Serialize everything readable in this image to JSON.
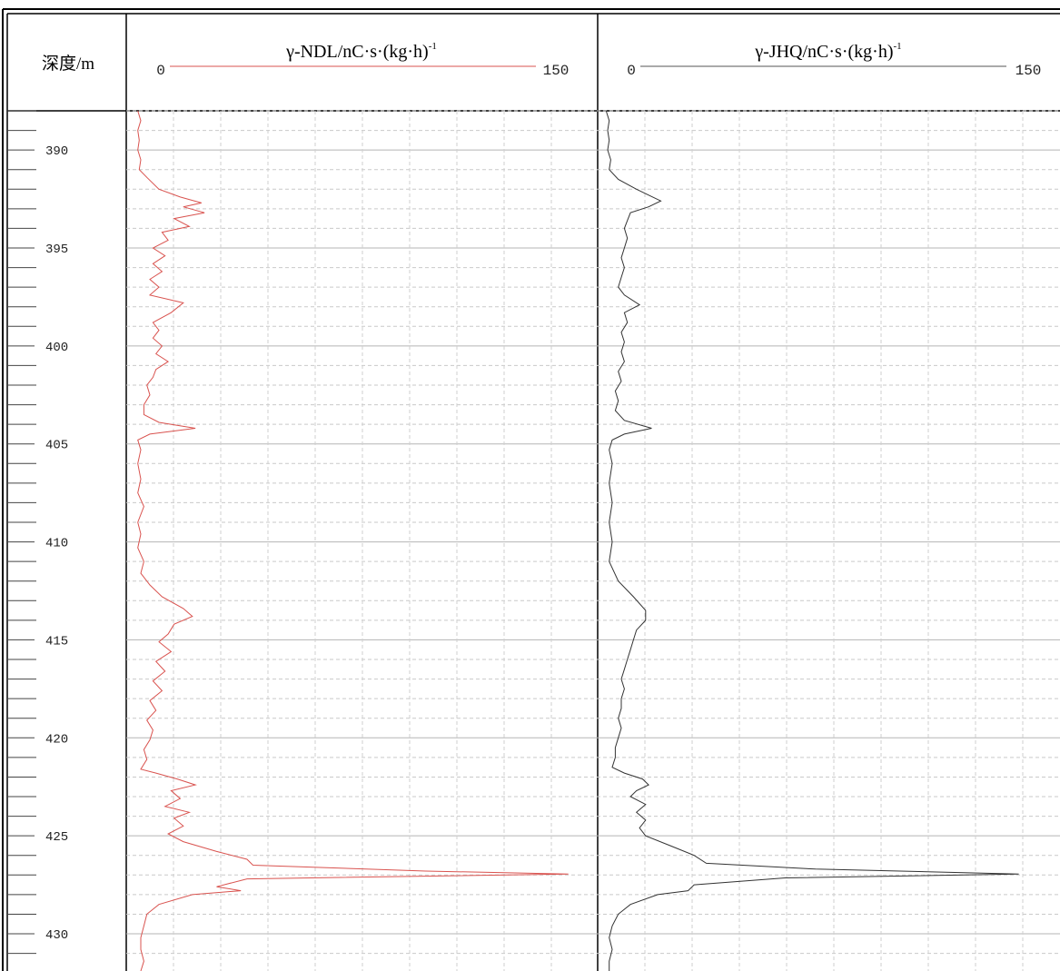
{
  "chart_data": {
    "type": "line",
    "depth_axis": {
      "label": "深度/m",
      "range": [
        388,
        431.9
      ],
      "major_ticks": [
        390,
        395,
        400,
        405,
        410,
        415,
        420,
        425,
        430
      ]
    },
    "tracks": [
      {
        "title": "γ-NDL/nC·s·(kg·h)",
        "title_sup": "-1",
        "scale_min_label": "0",
        "scale_max_label": "150",
        "xlim": [
          0,
          150
        ],
        "color": "#d9534f",
        "points": [
          [
            388.0,
            2
          ],
          [
            388.5,
            3
          ],
          [
            389.0,
            2
          ],
          [
            389.5,
            2.5
          ],
          [
            390.0,
            2
          ],
          [
            390.5,
            3
          ],
          [
            391.0,
            2.5
          ],
          [
            391.4,
            5
          ],
          [
            392.0,
            9
          ],
          [
            392.4,
            16
          ],
          [
            392.7,
            23
          ],
          [
            392.9,
            17
          ],
          [
            393.2,
            24
          ],
          [
            393.5,
            14
          ],
          [
            393.9,
            19
          ],
          [
            394.2,
            10
          ],
          [
            394.6,
            12
          ],
          [
            395.0,
            7
          ],
          [
            395.4,
            11
          ],
          [
            395.8,
            7
          ],
          [
            396.2,
            10
          ],
          [
            396.6,
            6
          ],
          [
            397.0,
            9
          ],
          [
            397.4,
            6
          ],
          [
            397.8,
            17
          ],
          [
            398.3,
            13
          ],
          [
            398.8,
            7
          ],
          [
            399.2,
            9
          ],
          [
            399.6,
            7
          ],
          [
            400.0,
            10
          ],
          [
            400.4,
            8
          ],
          [
            400.8,
            12
          ],
          [
            401.2,
            8
          ],
          [
            401.6,
            7
          ],
          [
            402.0,
            5
          ],
          [
            402.5,
            6
          ],
          [
            403.0,
            4
          ],
          [
            403.5,
            4
          ],
          [
            403.9,
            9
          ],
          [
            404.2,
            21
          ],
          [
            404.5,
            6
          ],
          [
            404.8,
            2
          ],
          [
            405.3,
            3
          ],
          [
            406.0,
            2
          ],
          [
            406.8,
            3
          ],
          [
            407.5,
            2
          ],
          [
            408.2,
            4
          ],
          [
            409.0,
            2
          ],
          [
            409.6,
            3
          ],
          [
            410.3,
            2
          ],
          [
            411.0,
            4
          ],
          [
            411.6,
            3
          ],
          [
            412.2,
            6
          ],
          [
            412.8,
            10
          ],
          [
            413.4,
            17
          ],
          [
            413.8,
            20
          ],
          [
            414.2,
            14
          ],
          [
            414.7,
            12
          ],
          [
            415.1,
            9
          ],
          [
            415.6,
            13
          ],
          [
            416.1,
            8
          ],
          [
            416.6,
            11
          ],
          [
            417.1,
            7
          ],
          [
            417.6,
            10
          ],
          [
            418.1,
            6
          ],
          [
            418.6,
            8
          ],
          [
            419.1,
            5
          ],
          [
            419.6,
            7
          ],
          [
            420.1,
            6
          ],
          [
            420.6,
            4
          ],
          [
            421.1,
            5
          ],
          [
            421.6,
            3
          ],
          [
            421.8,
            8
          ],
          [
            422.1,
            15
          ],
          [
            422.4,
            21
          ],
          [
            422.7,
            13
          ],
          [
            423.1,
            16
          ],
          [
            423.5,
            11
          ],
          [
            423.8,
            19
          ],
          [
            424.1,
            14
          ],
          [
            424.5,
            17
          ],
          [
            424.9,
            12
          ],
          [
            425.3,
            17
          ],
          [
            425.8,
            28
          ],
          [
            426.2,
            38
          ],
          [
            426.5,
            40
          ],
          [
            426.8,
            97
          ],
          [
            426.95,
            144
          ],
          [
            427.2,
            38
          ],
          [
            427.6,
            28
          ],
          [
            427.8,
            36
          ],
          [
            428.0,
            20
          ],
          [
            428.5,
            9
          ],
          [
            429.0,
            5
          ],
          [
            429.6,
            4
          ],
          [
            430.2,
            3
          ],
          [
            430.8,
            3
          ],
          [
            431.4,
            4
          ],
          [
            431.9,
            3
          ]
        ]
      },
      {
        "title": "γ-JHQ/nC·s·(kg·h)",
        "title_sup": "-1",
        "scale_min_label": "0",
        "scale_max_label": "150",
        "xlim": [
          0,
          150
        ],
        "color": "#333333",
        "points": [
          [
            388.0,
            1
          ],
          [
            388.5,
            2
          ],
          [
            389.0,
            1.5
          ],
          [
            389.5,
            2
          ],
          [
            390.0,
            1.5
          ],
          [
            390.5,
            2.5
          ],
          [
            391.0,
            2
          ],
          [
            391.5,
            5
          ],
          [
            392.0,
            11
          ],
          [
            392.3,
            15
          ],
          [
            392.6,
            19
          ],
          [
            392.9,
            15
          ],
          [
            393.2,
            9
          ],
          [
            393.6,
            8
          ],
          [
            394.0,
            7
          ],
          [
            394.5,
            8
          ],
          [
            395.0,
            7
          ],
          [
            395.5,
            6
          ],
          [
            396.0,
            7
          ],
          [
            396.5,
            6
          ],
          [
            397.0,
            5
          ],
          [
            397.4,
            7
          ],
          [
            397.9,
            12
          ],
          [
            398.3,
            7
          ],
          [
            398.8,
            8
          ],
          [
            399.3,
            6
          ],
          [
            399.8,
            7
          ],
          [
            400.3,
            6
          ],
          [
            400.8,
            7
          ],
          [
            401.3,
            5
          ],
          [
            401.8,
            6
          ],
          [
            402.3,
            4
          ],
          [
            402.8,
            5
          ],
          [
            403.3,
            4
          ],
          [
            403.8,
            7
          ],
          [
            404.2,
            16
          ],
          [
            404.5,
            7
          ],
          [
            404.8,
            3
          ],
          [
            405.3,
            2
          ],
          [
            406.0,
            3
          ],
          [
            407.0,
            2
          ],
          [
            408.0,
            3
          ],
          [
            409.0,
            2
          ],
          [
            410.0,
            3
          ],
          [
            411.0,
            2
          ],
          [
            412.0,
            5
          ],
          [
            412.8,
            10
          ],
          [
            413.5,
            14
          ],
          [
            414.0,
            14
          ],
          [
            414.5,
            11
          ],
          [
            415.0,
            10
          ],
          [
            415.5,
            9
          ],
          [
            416.0,
            8
          ],
          [
            416.5,
            7
          ],
          [
            417.0,
            6
          ],
          [
            417.5,
            7
          ],
          [
            418.0,
            6
          ],
          [
            418.5,
            6
          ],
          [
            419.0,
            5
          ],
          [
            419.5,
            6
          ],
          [
            420.0,
            5
          ],
          [
            420.5,
            4
          ],
          [
            421.0,
            4
          ],
          [
            421.5,
            3
          ],
          [
            421.8,
            7
          ],
          [
            422.1,
            13
          ],
          [
            422.4,
            15
          ],
          [
            422.7,
            11
          ],
          [
            423.0,
            9
          ],
          [
            423.4,
            14
          ],
          [
            423.8,
            11
          ],
          [
            424.2,
            14
          ],
          [
            424.6,
            12
          ],
          [
            425.0,
            14
          ],
          [
            425.5,
            22
          ],
          [
            426.0,
            30
          ],
          [
            426.4,
            34
          ],
          [
            426.7,
            70
          ],
          [
            426.95,
            137
          ],
          [
            427.15,
            60
          ],
          [
            427.5,
            30
          ],
          [
            427.8,
            28
          ],
          [
            428.0,
            18
          ],
          [
            428.5,
            9
          ],
          [
            429.0,
            5
          ],
          [
            429.6,
            3
          ],
          [
            430.2,
            2
          ],
          [
            430.8,
            3
          ],
          [
            431.4,
            2
          ],
          [
            431.9,
            2
          ]
        ]
      }
    ]
  }
}
